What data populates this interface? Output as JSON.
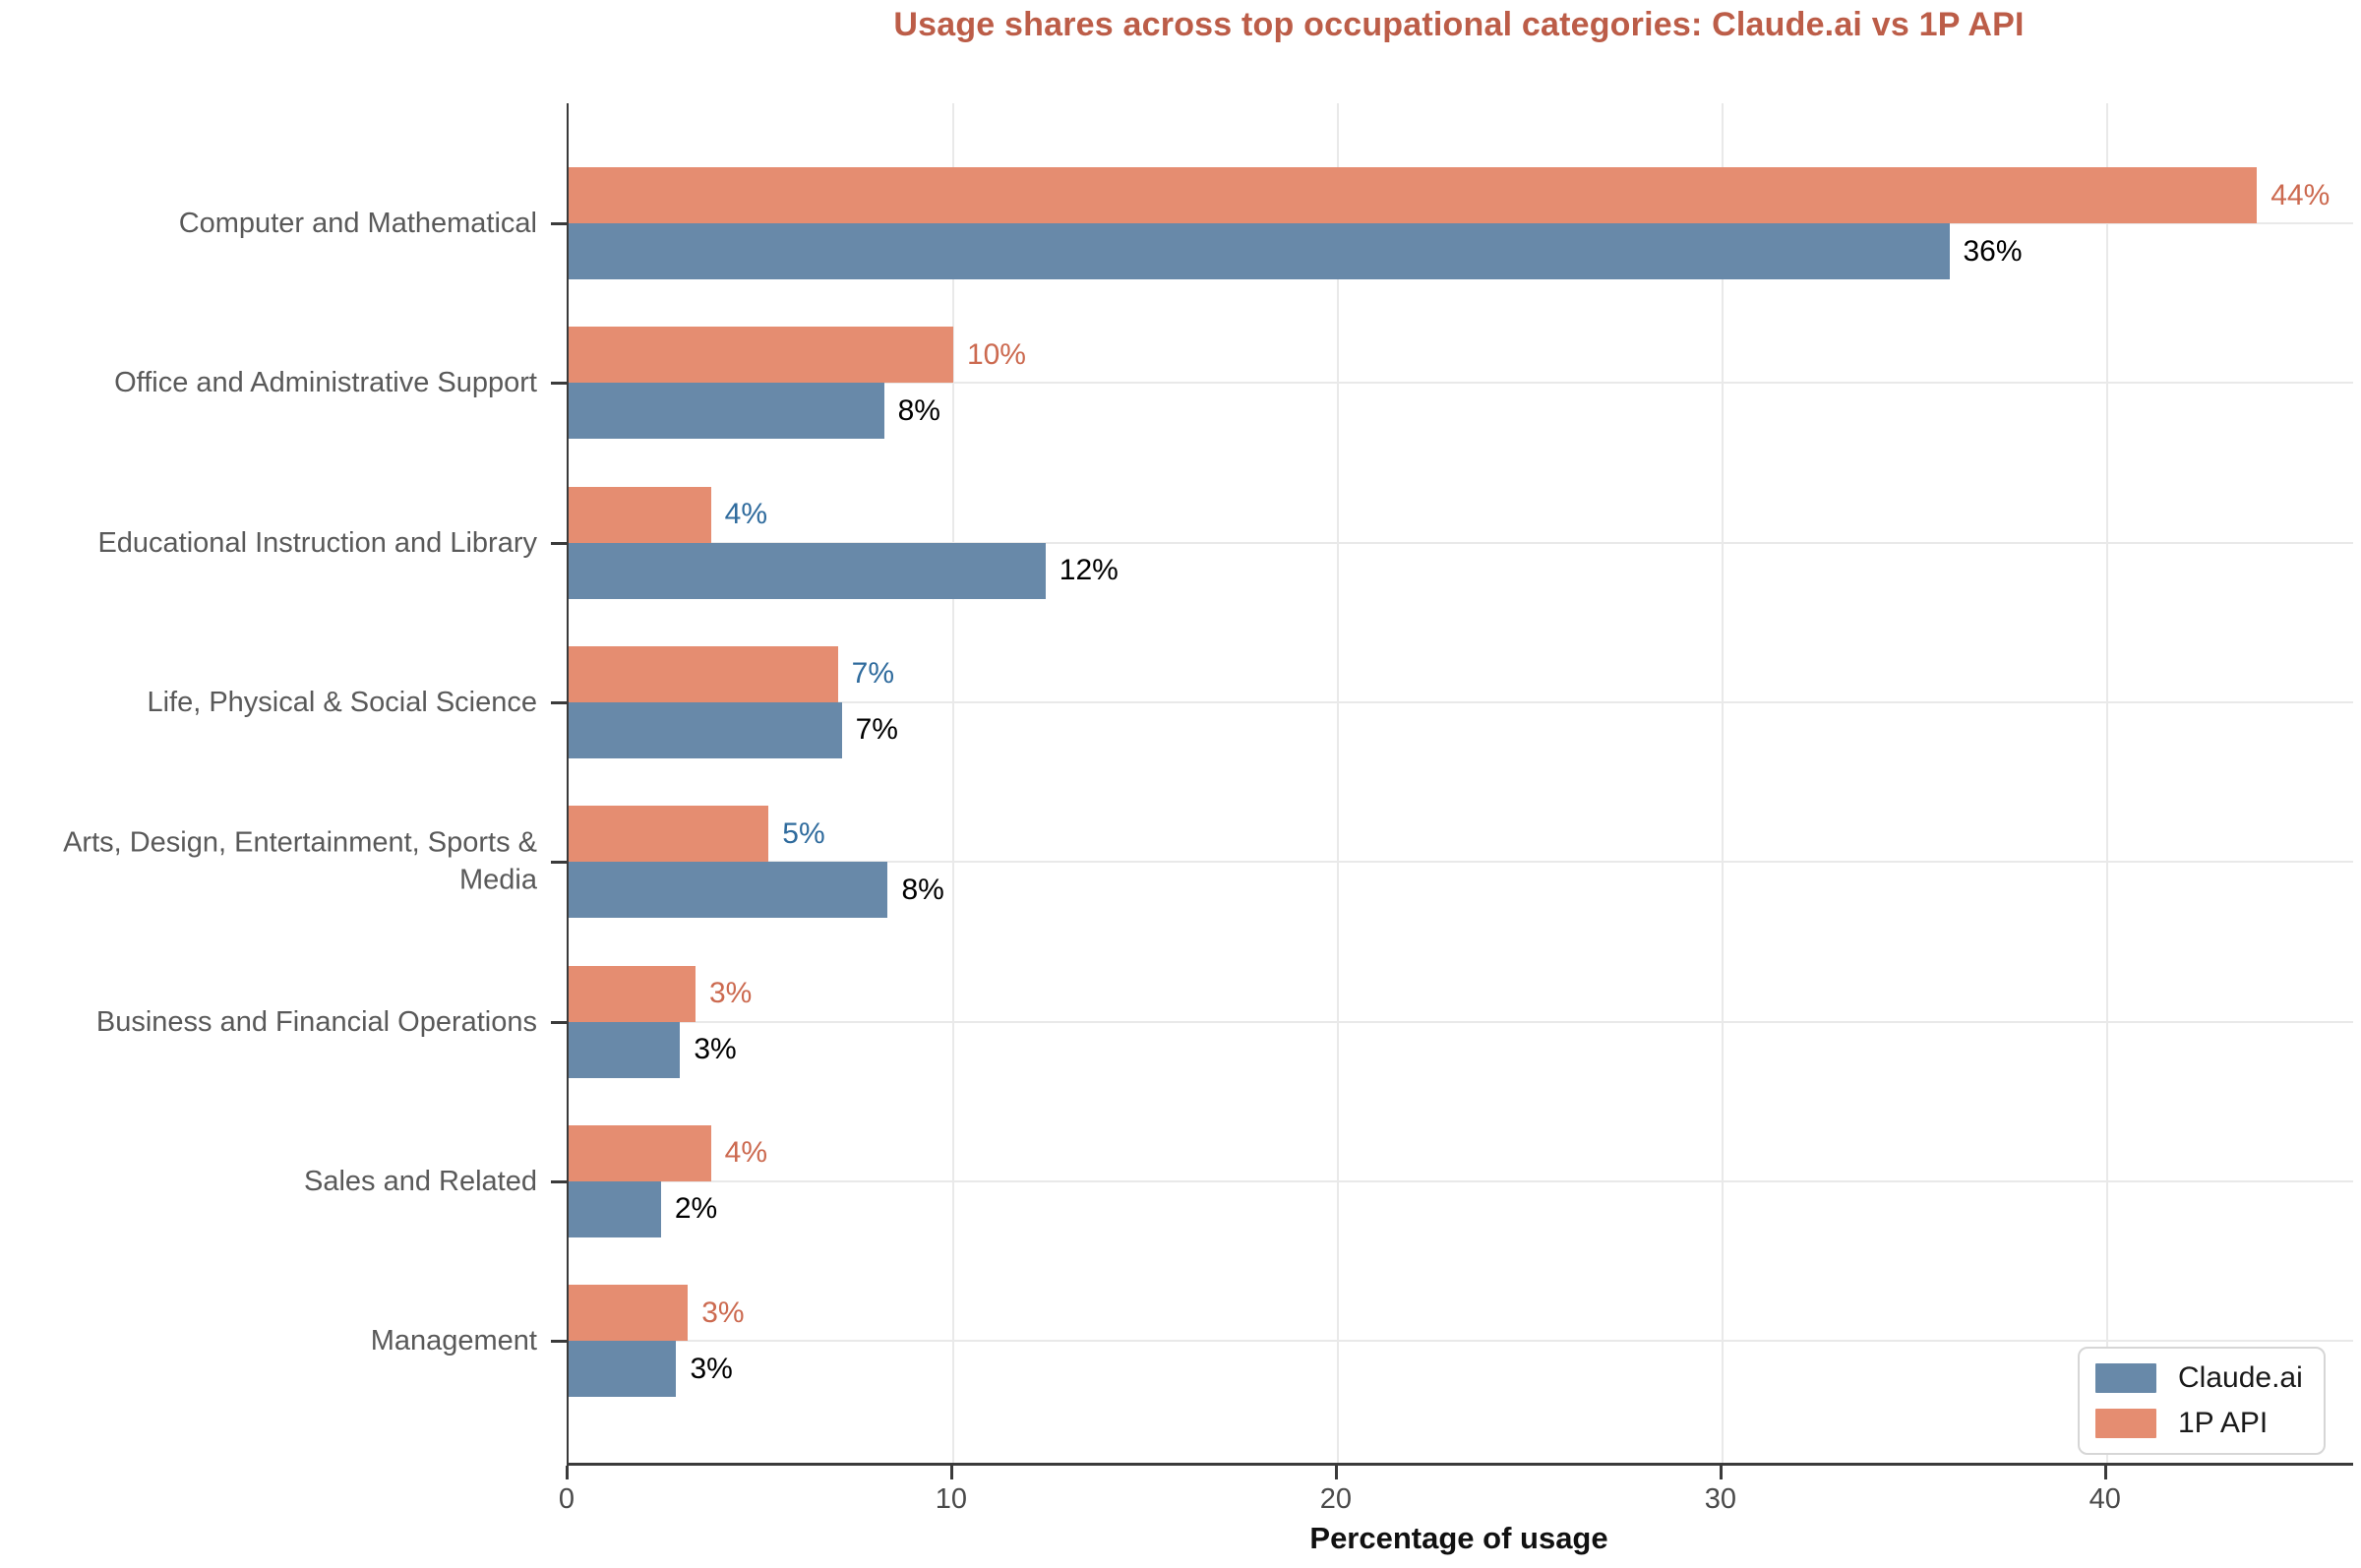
{
  "chart_data": {
    "type": "bar",
    "orientation": "horizontal",
    "title": "Usage shares across top occupational categories: Claude.ai vs 1P API",
    "xlabel": "Percentage of usage",
    "xlim": [
      0,
      46.4
    ],
    "xticks": [
      0,
      10,
      20,
      30,
      40
    ],
    "grid": "on",
    "legend_position": "lower right",
    "categories": [
      "Computer and Mathematical",
      "Office and Administrative Support",
      "Educational Instruction and Library",
      "Life, Physical & Social Science",
      "Arts, Design, Entertainment, Sports & Media",
      "Business and Financial Operations",
      "Sales and Related",
      "Management"
    ],
    "series": [
      {
        "name": "1P API",
        "color": "#E58D71",
        "values": [
          44,
          10,
          4,
          7,
          5,
          3,
          4,
          3
        ],
        "values_est": [
          43.9,
          10.0,
          3.7,
          7.0,
          5.2,
          3.3,
          3.7,
          3.1
        ],
        "value_labels": [
          "44%",
          "10%",
          "4%",
          "7%",
          "5%",
          "3%",
          "4%",
          "3%"
        ],
        "value_label_colors": [
          "#CC6A50",
          "#CC6A50",
          "#2F6B9D",
          "#2F6B9D",
          "#2F6B9D",
          "#CC6A50",
          "#CC6A50",
          "#CC6A50"
        ]
      },
      {
        "name": "Claude.ai",
        "color": "#6889A9",
        "values": [
          36,
          8,
          12,
          7,
          8,
          3,
          2,
          3
        ],
        "values_est": [
          35.9,
          8.2,
          12.4,
          7.1,
          8.3,
          2.9,
          2.4,
          2.8
        ],
        "value_labels": [
          "36%",
          "8%",
          "12%",
          "7%",
          "8%",
          "3%",
          "2%",
          "3%"
        ],
        "value_label_colors": [
          "#000000",
          "#000000",
          "#000000",
          "#000000",
          "#000000",
          "#000000",
          "#000000",
          "#000000"
        ]
      }
    ],
    "legend": [
      {
        "label": "Claude.ai",
        "color": "#6889A9"
      },
      {
        "label": "1P API",
        "color": "#E58D71"
      }
    ]
  },
  "styles": {
    "background": "#FFFFFF",
    "title_color": "#BC5D48",
    "category_label_color": "#595959",
    "tick_label_color": "#4A4A4A",
    "axis_color": "#3A3A3A",
    "gridline_color": "#E9E9E9",
    "xlabel_color": "#111111",
    "legend_text_color": "#1A1A1A",
    "legend_border_color": "#D6D6D6"
  }
}
